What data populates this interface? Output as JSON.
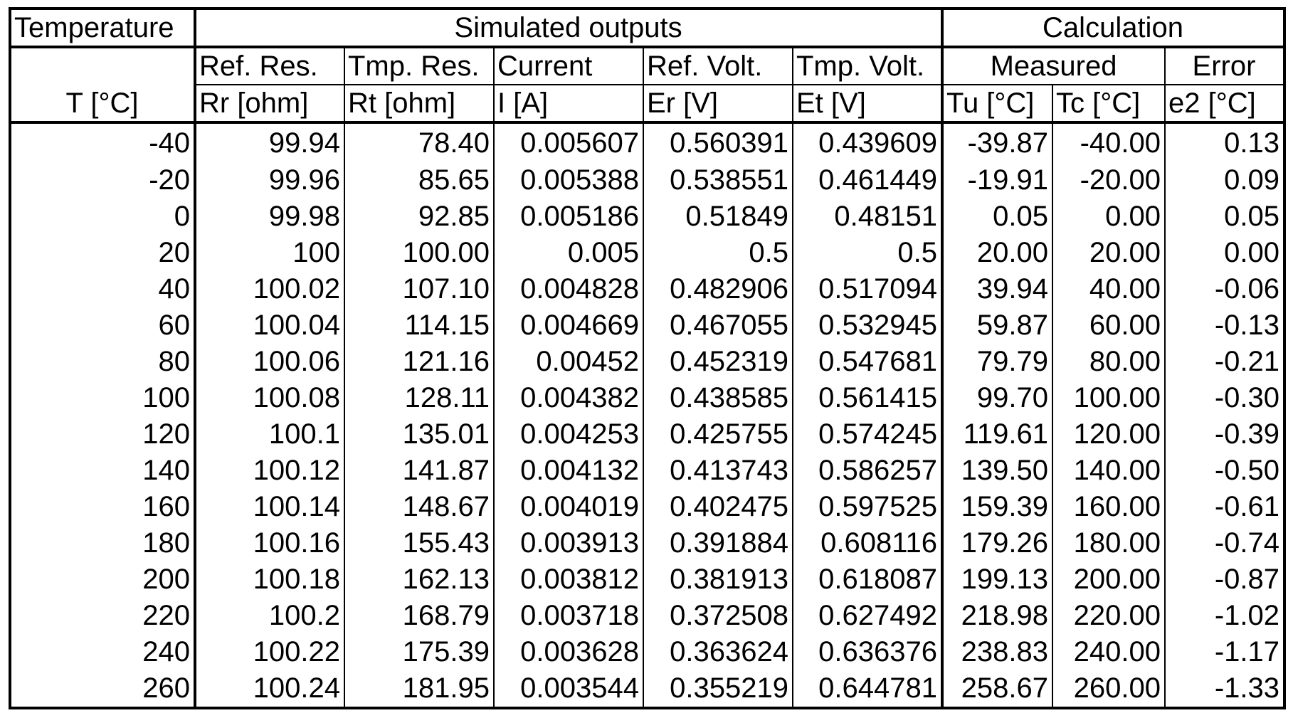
{
  "header": {
    "group_row": {
      "temperature": "Temperature",
      "simulated": "Simulated outputs",
      "calculation": "Calculation"
    },
    "label_row": {
      "ref_res": "Ref. Res.",
      "tmp_res": "Tmp. Res.",
      "current": "Current",
      "ref_volt": "Ref. Volt.",
      "tmp_volt": "Tmp. Volt.",
      "measured": "Measured",
      "error": "Error"
    },
    "unit_row": {
      "t": "T [°C]",
      "rr": "Rr [ohm]",
      "rt": "Rt [ohm]",
      "i": "I [A]",
      "er": "Er [V]",
      "et": "Et [V]",
      "tu": "Tu [°C]",
      "tc": "Tc [°C]",
      "e2": "e2 [°C]"
    }
  },
  "rows": [
    [
      "-40",
      "99.94",
      "78.40",
      "0.005607",
      "0.560391",
      "0.439609",
      "-39.87",
      "-40.00",
      "0.13"
    ],
    [
      "-20",
      "99.96",
      "85.65",
      "0.005388",
      "0.538551",
      "0.461449",
      "-19.91",
      "-20.00",
      "0.09"
    ],
    [
      "0",
      "99.98",
      "92.85",
      "0.005186",
      "0.51849",
      "0.48151",
      "0.05",
      "0.00",
      "0.05"
    ],
    [
      "20",
      "100",
      "100.00",
      "0.005",
      "0.5",
      "0.5",
      "20.00",
      "20.00",
      "0.00"
    ],
    [
      "40",
      "100.02",
      "107.10",
      "0.004828",
      "0.482906",
      "0.517094",
      "39.94",
      "40.00",
      "-0.06"
    ],
    [
      "60",
      "100.04",
      "114.15",
      "0.004669",
      "0.467055",
      "0.532945",
      "59.87",
      "60.00",
      "-0.13"
    ],
    [
      "80",
      "100.06",
      "121.16",
      "0.00452",
      "0.452319",
      "0.547681",
      "79.79",
      "80.00",
      "-0.21"
    ],
    [
      "100",
      "100.08",
      "128.11",
      "0.004382",
      "0.438585",
      "0.561415",
      "99.70",
      "100.00",
      "-0.30"
    ],
    [
      "120",
      "100.1",
      "135.01",
      "0.004253",
      "0.425755",
      "0.574245",
      "119.61",
      "120.00",
      "-0.39"
    ],
    [
      "140",
      "100.12",
      "141.87",
      "0.004132",
      "0.413743",
      "0.586257",
      "139.50",
      "140.00",
      "-0.50"
    ],
    [
      "160",
      "100.14",
      "148.67",
      "0.004019",
      "0.402475",
      "0.597525",
      "159.39",
      "160.00",
      "-0.61"
    ],
    [
      "180",
      "100.16",
      "155.43",
      "0.003913",
      "0.391884",
      "0.608116",
      "179.26",
      "180.00",
      "-0.74"
    ],
    [
      "200",
      "100.18",
      "162.13",
      "0.003812",
      "0.381913",
      "0.618087",
      "199.13",
      "200.00",
      "-0.87"
    ],
    [
      "220",
      "100.2",
      "168.79",
      "0.003718",
      "0.372508",
      "0.627492",
      "218.98",
      "220.00",
      "-1.02"
    ],
    [
      "240",
      "100.22",
      "175.39",
      "0.003628",
      "0.363624",
      "0.636376",
      "238.83",
      "240.00",
      "-1.17"
    ],
    [
      "260",
      "100.24",
      "181.95",
      "0.003544",
      "0.355219",
      "0.644781",
      "258.67",
      "260.00",
      "-1.33"
    ]
  ]
}
